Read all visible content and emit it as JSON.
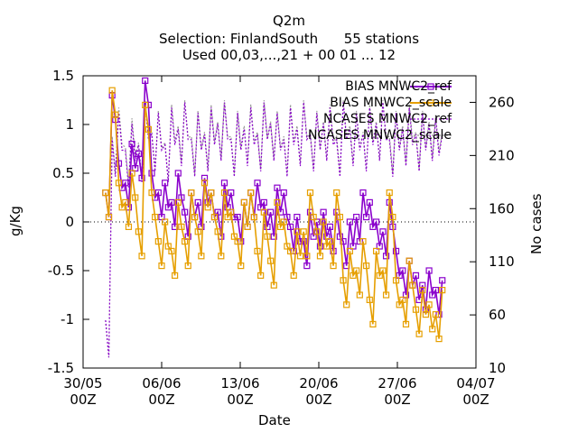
{
  "chart_data": {
    "type": "line",
    "title_lines": [
      "Q2m",
      "Selection: FinlandSouth      55 stations",
      "Used 00,03,...,21 + 00 01 ... 12"
    ],
    "xlabel": "Date",
    "ylabel": "g/Kg",
    "y2label": "No cases",
    "ylim": [
      -1.5,
      1.5
    ],
    "y2lim": [
      10,
      285
    ],
    "yticks": [
      "-1.5",
      "-1",
      "-0.5",
      "0",
      "0.5",
      "1",
      "1.5"
    ],
    "y2ticks": [
      "10",
      "60",
      "110",
      "160",
      "210",
      "260"
    ],
    "xticks": [
      {
        "top": "30/05",
        "bottom": "00Z"
      },
      {
        "top": "06/06",
        "bottom": "00Z"
      },
      {
        "top": "13/06",
        "bottom": "00Z"
      },
      {
        "top": "20/06",
        "bottom": "00Z"
      },
      {
        "top": "27/06",
        "bottom": "00Z"
      },
      {
        "top": "04/07",
        "bottom": "00Z"
      }
    ],
    "x_range_days": [
      0,
      35
    ],
    "series": [
      {
        "name": "BIAS MNWC2_ref",
        "color": "#8a00cc",
        "axis": "y",
        "start_day": 2.0,
        "end_day": 32.0,
        "values": [
          0.3,
          1.3,
          0.6,
          0.4,
          0.8,
          0.7,
          1.45,
          0.5,
          0.3,
          0.4,
          0.2,
          0.5,
          0.1,
          0.3,
          0.2,
          0.45,
          0.3,
          0.1,
          0.4,
          0.3,
          0.05,
          0.2,
          0.3,
          0.4,
          0.2,
          0.1,
          0.35,
          0.3,
          -0.05,
          0.05,
          -0.2,
          0.1,
          0.0,
          0.1,
          -0.05,
          0.1,
          -0.2,
          0.0,
          0.05,
          0.3,
          0.2,
          0.0,
          -0.1,
          0.2,
          -0.3,
          -0.5,
          -0.4,
          -0.55,
          -0.65,
          -0.5,
          -0.7,
          -0.6
        ]
      },
      {
        "name": "BIAS MNWC2_scale",
        "color": "#e69f00",
        "axis": "y",
        "start_day": 2.0,
        "end_day": 32.0,
        "values": [
          0.3,
          1.35,
          0.4,
          0.2,
          0.5,
          -0.1,
          1.2,
          0.3,
          -0.2,
          0.0,
          -0.3,
          0.2,
          -0.2,
          0.3,
          -0.1,
          0.4,
          0.3,
          -0.1,
          0.3,
          0.1,
          -0.2,
          0.2,
          0.3,
          -0.3,
          0.1,
          -0.4,
          0.2,
          0.0,
          -0.3,
          -0.1,
          -0.1,
          0.3,
          -0.1,
          0.0,
          -0.2,
          0.3,
          -0.6,
          -0.3,
          -0.5,
          -0.2,
          -0.8,
          -0.3,
          -0.5,
          0.3,
          -0.6,
          -0.8,
          -0.4,
          -0.9,
          -0.7,
          -0.85,
          -0.95,
          -0.7
        ]
      },
      {
        "name": "NCASES MNWC2_ref",
        "color": "#8a00cc",
        "axis": "y2",
        "start_day": 2.0,
        "end_day": 32.0,
        "values": [
          55,
          225,
          250,
          215,
          240,
          220,
          260,
          230,
          250,
          220,
          255,
          235,
          260,
          225,
          250,
          230,
          255,
          240,
          260,
          225,
          250,
          235,
          255,
          230,
          260,
          240,
          250,
          225,
          255,
          235,
          260,
          230,
          250,
          240,
          255,
          225,
          260,
          235,
          250,
          230,
          255,
          240,
          260,
          225,
          250,
          235,
          255,
          230,
          250,
          240,
          245,
          230
        ]
      },
      {
        "name": "NCASES MNWC2_scale",
        "color": "#999999",
        "axis": "y2",
        "start_day": 2.0,
        "end_day": 32.0,
        "values": [
          55,
          228,
          255,
          218,
          245,
          222,
          262,
          232,
          252,
          222,
          258,
          238,
          262,
          228,
          252,
          232,
          258,
          242,
          262,
          228,
          252,
          238,
          258,
          232,
          262,
          242,
          252,
          228,
          258,
          238,
          262,
          232,
          252,
          242,
          258,
          228,
          262,
          238,
          252,
          232,
          258,
          242,
          262,
          228,
          252,
          238,
          258,
          232,
          252,
          242,
          248,
          232
        ]
      }
    ]
  }
}
